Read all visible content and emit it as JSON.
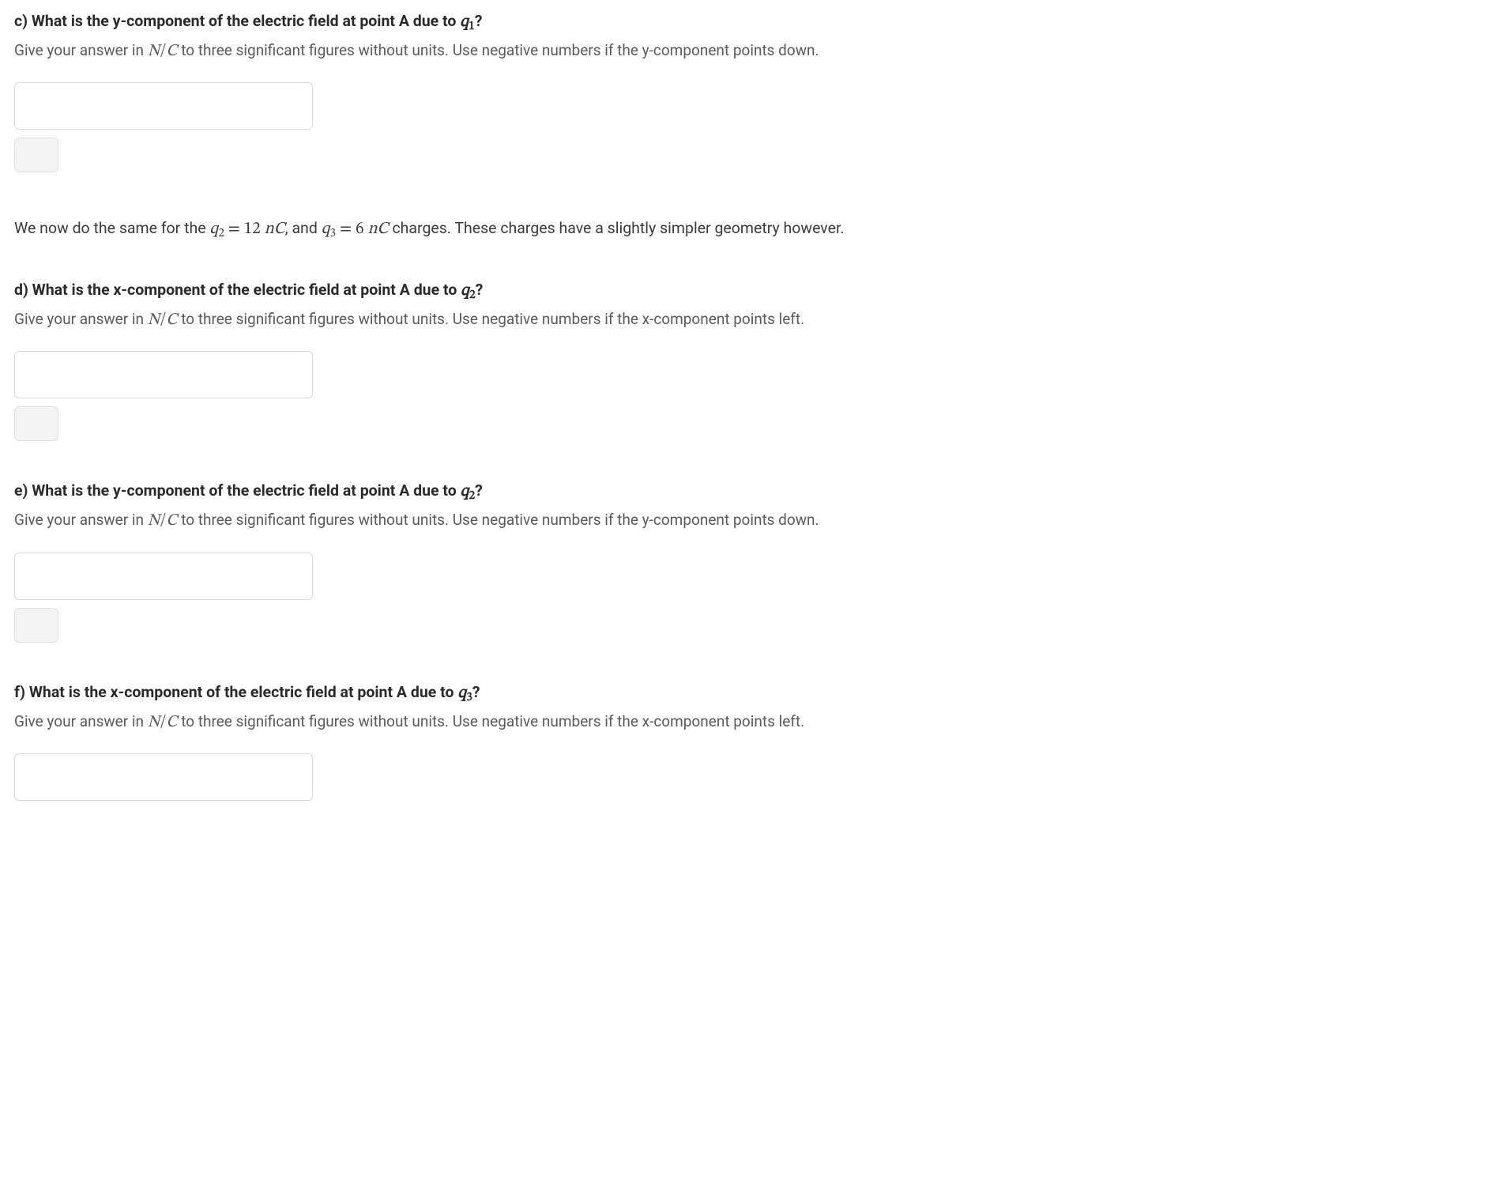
{
  "questions": {
    "c": {
      "label": "c)",
      "text_before_var": "What is the y-component of the electric field at point A due to ",
      "var_letter": "q",
      "var_sub": "1",
      "text_after_var": "?",
      "instr_prefix": "Give your answer in ",
      "instr_unit_num": "N",
      "instr_unit_slash": "/",
      "instr_unit_den": "C",
      "instr_suffix": " to three significant figures without units. Use negative numbers if the y-component points down."
    },
    "d": {
      "label": "d)",
      "text_before_var": "What is the x-component of the electric field at point A due to ",
      "var_letter": "q",
      "var_sub": "2",
      "text_after_var": "?",
      "instr_prefix": "Give your answer in ",
      "instr_unit_num": "N",
      "instr_unit_slash": "/",
      "instr_unit_den": "C",
      "instr_suffix": " to three significant figures without units. Use negative numbers if the x-component points left."
    },
    "e": {
      "label": "e)",
      "text_before_var": "What is the y-component of the electric field at point A due to ",
      "var_letter": "q",
      "var_sub": "2",
      "text_after_var": "?",
      "instr_prefix": "Give your answer in ",
      "instr_unit_num": "N",
      "instr_unit_slash": "/",
      "instr_unit_den": "C",
      "instr_suffix": " to three significant figures without units. Use negative numbers if the y-component points down."
    },
    "f": {
      "label": "f)",
      "text_before_var": "What is the x-component of the electric field at point A due to ",
      "var_letter": "q",
      "var_sub": "3",
      "text_after_var": "?",
      "instr_prefix": "Give your answer in ",
      "instr_unit_num": "N",
      "instr_unit_slash": "/",
      "instr_unit_den": "C",
      "instr_suffix": " to three significant figures without units. Use negative numbers if the x-component points left."
    }
  },
  "intertext": {
    "p1": "We now do the same for the ",
    "q2_letter": "q",
    "q2_sub": "2",
    "eq": " = ",
    "q2_val": "12 ",
    "q2_unit_n": "n",
    "q2_unit_c": "C",
    "p2": ", and ",
    "q3_letter": "q",
    "q3_sub": "3",
    "q3_val": "6 ",
    "q3_unit_n": "n",
    "q3_unit_c": "C",
    "p3": " charges. These charges have a slightly simpler geometry however."
  }
}
